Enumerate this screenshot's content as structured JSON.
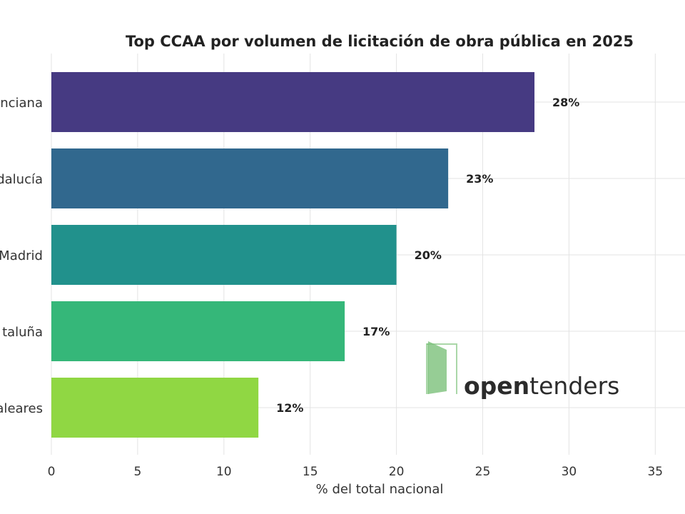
{
  "chart_data": {
    "type": "bar",
    "orientation": "horizontal",
    "title": "Top CCAA por volumen de licitación de obra pública en 2025",
    "xlabel": "% del total nacional",
    "ylabel": "",
    "categories": [
      "Comunidad Valenciana",
      "Andalucía",
      "Comunidad de Madrid",
      "Cataluña",
      "Islas Baleares"
    ],
    "category_labels_visible": [
      "nciana",
      "dalucía",
      "Madrid",
      "taluña",
      "aleares"
    ],
    "values": [
      28,
      23,
      20,
      17,
      12
    ],
    "value_labels": [
      "28%",
      "23%",
      "20%",
      "17%",
      "12%"
    ],
    "colors": [
      "#463a82",
      "#31688e",
      "#21918c",
      "#35b779",
      "#90d743"
    ],
    "xlim": [
      0,
      36
    ],
    "xticks": [
      0,
      5,
      10,
      15,
      20,
      25,
      30,
      35
    ],
    "grid": true,
    "legend": "none"
  },
  "logo": {
    "name": "opentenders-logo",
    "text_open": "open",
    "text_tenders": "tenders",
    "icon": "door-icon",
    "color": "#7cc17a"
  }
}
